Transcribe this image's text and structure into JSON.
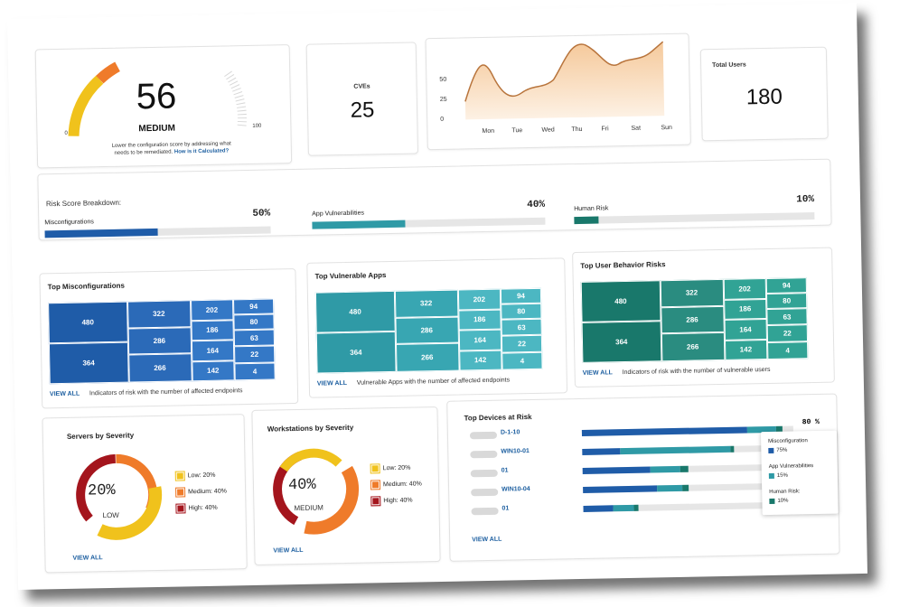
{
  "colors": {
    "blue": "#1f5ca8",
    "teal": "#2f9aa6",
    "green": "#19786b",
    "low": "#f0c21c",
    "medium": "#ef7b2a",
    "high": "#a4151d",
    "orangeChart": "#b8743c"
  },
  "score": {
    "value": "56",
    "level": "MEDIUM",
    "min": "0",
    "max": "100",
    "note_line1": "Lower the configuration score by addressing what",
    "note_line2": "needs to be remediated.",
    "note_link": "How is it Calculated?"
  },
  "cves": {
    "label": "CVEs",
    "value": "25"
  },
  "trend": {
    "y_ticks": [
      "50",
      "25",
      "0"
    ],
    "days": [
      "Mon",
      "Tue",
      "Wed",
      "Thu",
      "Fri",
      "Sat",
      "Sun"
    ]
  },
  "users": {
    "label": "Total Users",
    "value": "180"
  },
  "breakdown": {
    "title": "Risk Score Breakdown:",
    "items": [
      {
        "label": "Misconfigurations",
        "pct": "50%",
        "fill": 0.5
      },
      {
        "label": "App Vulnerabilities",
        "pct": "40%",
        "fill": 0.4
      },
      {
        "label": "Human Risk",
        "pct": "10%",
        "fill": 0.1
      }
    ]
  },
  "treemaps": [
    {
      "title": "Top Misconfigurations",
      "link": "VIEW ALL",
      "caption": "Indicators of risk with the number of affected endpoints",
      "values": [
        "480",
        "364",
        "322",
        "286",
        "266",
        "202",
        "186",
        "164",
        "142",
        "94",
        "80",
        "63",
        "22",
        "4"
      ]
    },
    {
      "title": "Top Vulnerable Apps",
      "link": "VIEW ALL",
      "caption": "Vulnerable Apps with the number of affected endpoints",
      "values": [
        "480",
        "364",
        "322",
        "286",
        "266",
        "202",
        "186",
        "164",
        "142",
        "94",
        "80",
        "63",
        "22",
        "4"
      ]
    },
    {
      "title": "Top User Behavior Risks",
      "link": "VIEW ALL",
      "caption": "Indicators of risk with the number of vulnerable users",
      "values": [
        "480",
        "364",
        "322",
        "286",
        "266",
        "202",
        "186",
        "164",
        "142",
        "94",
        "80",
        "63",
        "22",
        "4"
      ]
    }
  ],
  "servers": {
    "title": "Servers by Severity",
    "center_value": "20%",
    "center_label": "LOW",
    "link": "VIEW ALL",
    "legend": [
      {
        "label": "Low: 20%",
        "color": "#f0c21c"
      },
      {
        "label": "Medium: 40%",
        "color": "#ef7b2a"
      },
      {
        "label": "High: 40%",
        "color": "#a4151d"
      }
    ]
  },
  "workstations": {
    "title": "Workstations by Severity",
    "center_value": "40%",
    "center_label": "MEDIUM",
    "link": "VIEW ALL",
    "legend": [
      {
        "label": "Low: 20%",
        "color": "#f0c21c"
      },
      {
        "label": "Medium: 40%",
        "color": "#ef7b2a"
      },
      {
        "label": "High: 40%",
        "color": "#a4151d"
      }
    ]
  },
  "devices": {
    "title": "Top Devices at Risk",
    "link": "VIEW ALL",
    "first_pct": "80 %",
    "names": [
      "D-1-10",
      "WIN10-01",
      "01",
      "WIN10-04",
      "01"
    ],
    "legend": [
      {
        "label": "Misconfiguration",
        "value": "75%"
      },
      {
        "label": "App Vulnerabilities",
        "value": "15%"
      },
      {
        "label": "Human Risk:",
        "value": "10%"
      }
    ]
  }
}
